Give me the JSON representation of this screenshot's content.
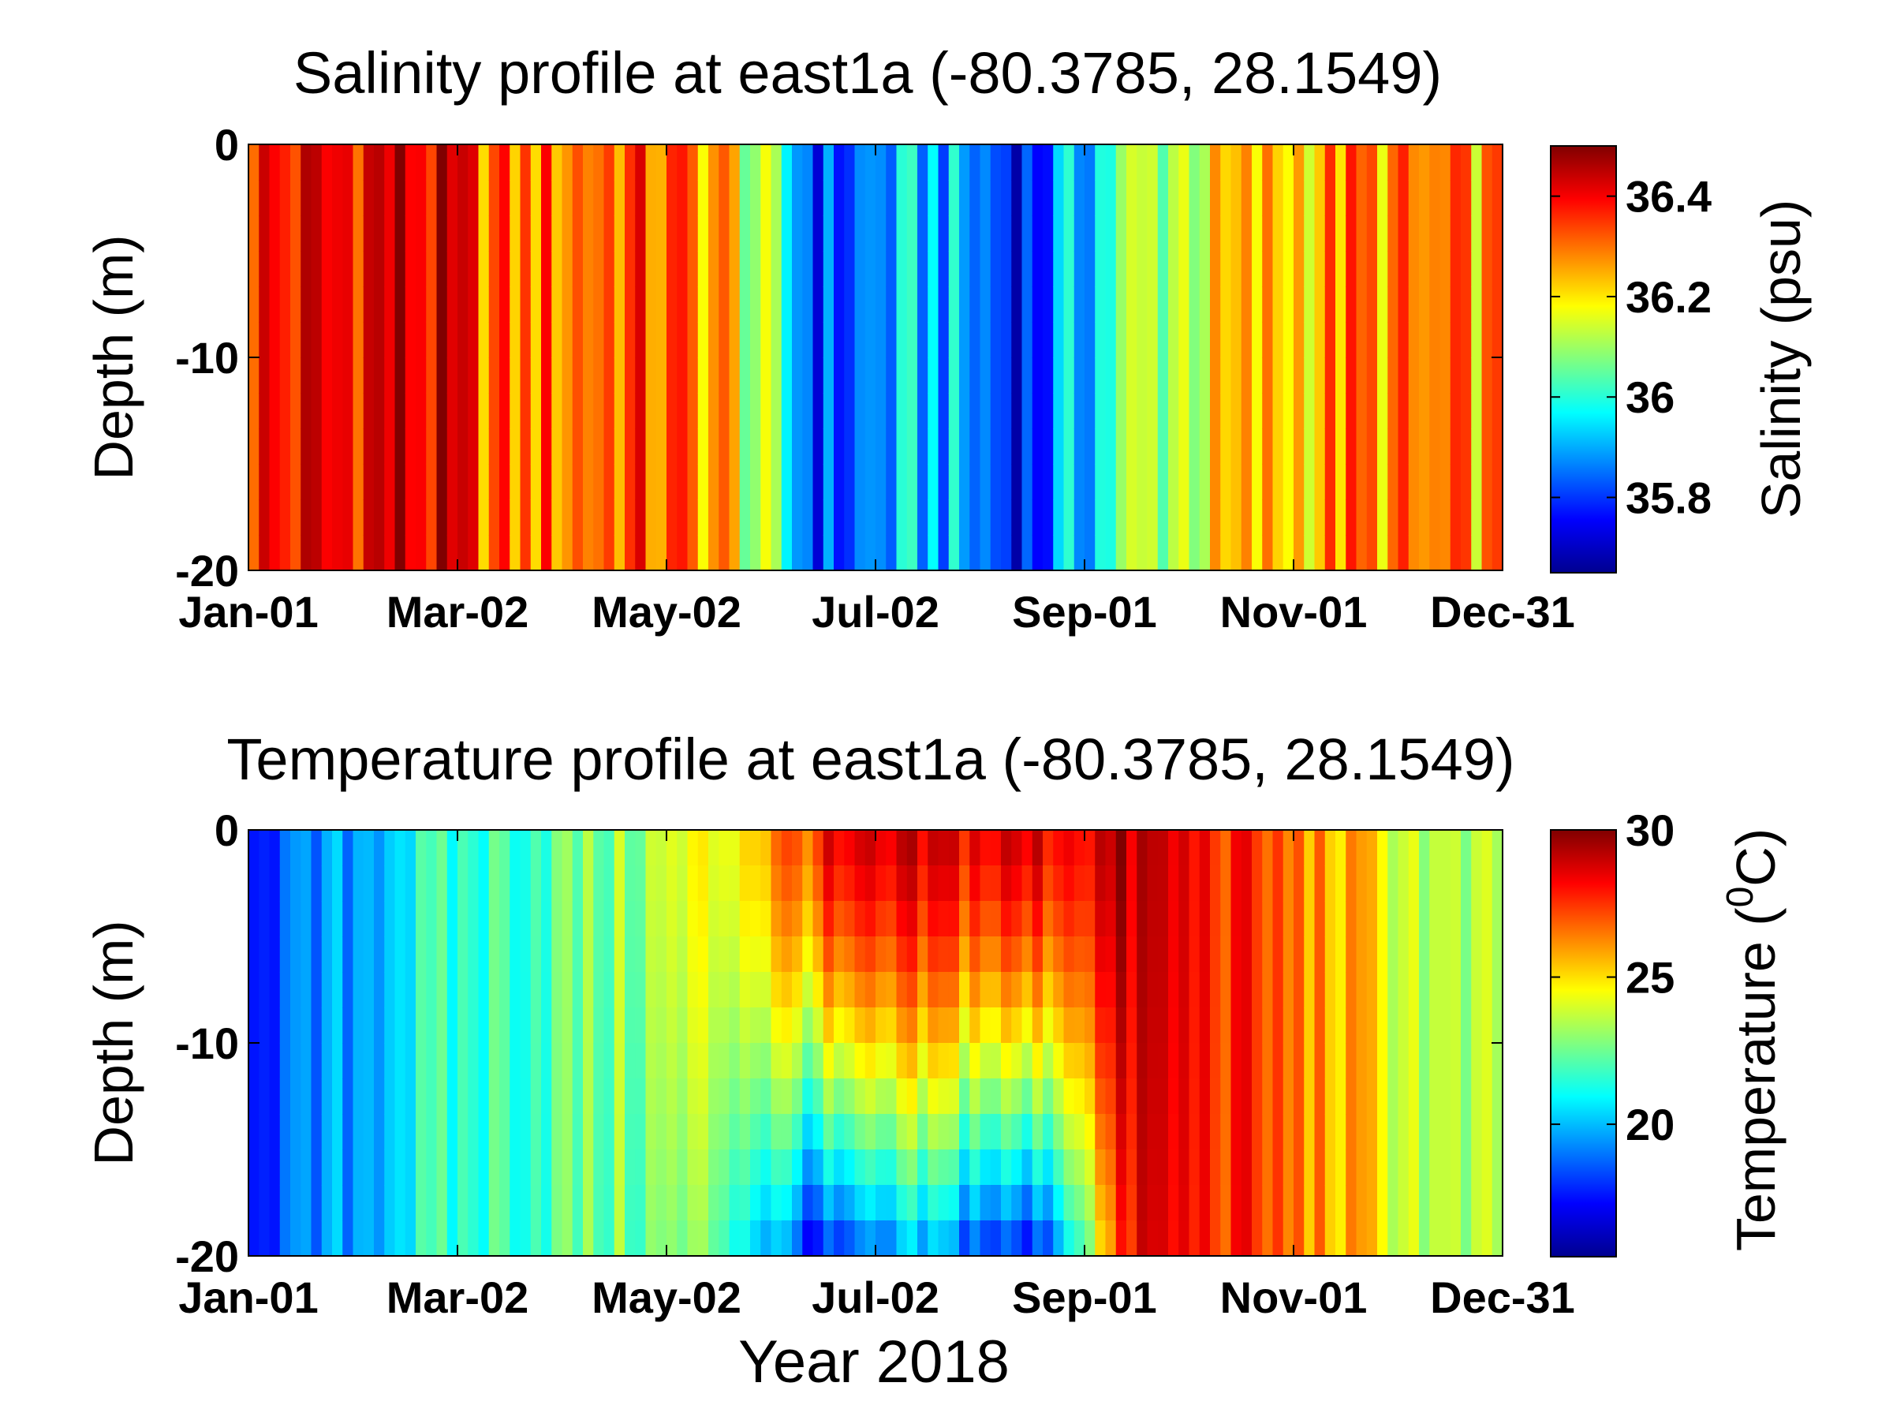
{
  "chart_data": [
    {
      "type": "heatmap",
      "title": "Salinity profile at east1a (-80.3785, 28.1549)",
      "ylabel": "Depth (m)",
      "xlabel": "",
      "xlim": [
        "2018-01-01",
        "2018-12-31"
      ],
      "ylim": [
        -20,
        0
      ],
      "x_tick_labels": [
        "Jan-01",
        "Mar-02",
        "May-02",
        "Jul-02",
        "Sep-01",
        "Nov-01",
        "Dec-31"
      ],
      "y_tick_labels": [
        "0",
        "-10",
        "-20"
      ],
      "colorbar": {
        "label": "Salinity (psu)",
        "colormap": "jet",
        "range": [
          35.65,
          36.5
        ],
        "tick_labels": [
          "35.8",
          "36",
          "36.2",
          "36.4"
        ],
        "ticks": [
          35.8,
          36.0,
          36.2,
          36.4
        ]
      },
      "surface_value_by_month": [
        {
          "month": "Jan",
          "value": 36.38
        },
        {
          "month": "Feb",
          "value": 36.44
        },
        {
          "month": "Mar",
          "value": 36.28
        },
        {
          "month": "Apr",
          "value": 36.33
        },
        {
          "month": "May",
          "value": 36.27
        },
        {
          "month": "Jun",
          "value": 35.8
        },
        {
          "month": "Jul",
          "value": 35.93
        },
        {
          "month": "Aug",
          "value": 35.78
        },
        {
          "month": "Sep",
          "value": 36.1
        },
        {
          "month": "Oct",
          "value": 36.2
        },
        {
          "month": "Nov",
          "value": 36.28
        },
        {
          "month": "Dec",
          "value": 36.25
        }
      ]
    },
    {
      "type": "heatmap",
      "title": "Temperature profile at east1a (-80.3785, 28.1549)",
      "ylabel": "Depth (m)",
      "xlabel": "Year 2018",
      "xlim": [
        "2018-01-01",
        "2018-12-31"
      ],
      "ylim": [
        -20,
        0
      ],
      "x_tick_labels": [
        "Jan-01",
        "Mar-02",
        "May-02",
        "Jul-02",
        "Sep-01",
        "Nov-01",
        "Dec-31"
      ],
      "y_tick_labels": [
        "0",
        "-10",
        "-20"
      ],
      "colorbar": {
        "label_main": "Temperature (",
        "label_sup": "0",
        "label_end": "C)",
        "colormap": "jet",
        "range": [
          15.5,
          30
        ],
        "tick_labels": [
          "20",
          "25",
          "30"
        ],
        "ticks": [
          20,
          25,
          30
        ]
      },
      "surface_value_by_month": [
        {
          "month": "Jan",
          "value": 18.5
        },
        {
          "month": "Feb",
          "value": 21
        },
        {
          "month": "Mar",
          "value": 22
        },
        {
          "month": "Apr",
          "value": 22.8
        },
        {
          "month": "May",
          "value": 24.5
        },
        {
          "month": "Jun",
          "value": 27.8
        },
        {
          "month": "Jul",
          "value": 28.5
        },
        {
          "month": "Aug",
          "value": 28.5
        },
        {
          "month": "Sep",
          "value": 29
        },
        {
          "month": "Oct",
          "value": 27.5
        },
        {
          "month": "Nov",
          "value": 25.5
        },
        {
          "month": "Dec",
          "value": 23
        }
      ],
      "bottom_value_by_month": [
        {
          "month": "Jan",
          "value": 18.5
        },
        {
          "month": "Feb",
          "value": 21
        },
        {
          "month": "Mar",
          "value": 22
        },
        {
          "month": "Apr",
          "value": 22.5
        },
        {
          "month": "May",
          "value": 22.5
        },
        {
          "month": "Jun",
          "value": 17
        },
        {
          "month": "Jul",
          "value": 19.5
        },
        {
          "month": "Aug",
          "value": 17
        },
        {
          "month": "Sep",
          "value": 28.5
        },
        {
          "month": "Oct",
          "value": 27.5
        },
        {
          "month": "Nov",
          "value": 25.5
        },
        {
          "month": "Dec",
          "value": 23
        }
      ]
    }
  ]
}
